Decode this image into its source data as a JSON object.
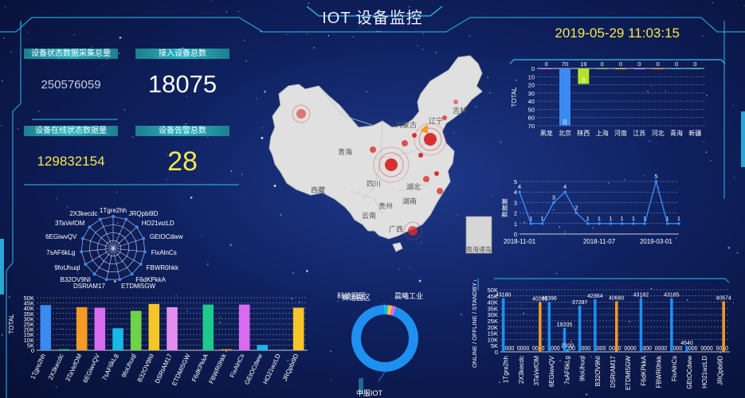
{
  "header": {
    "title": "IOT 设备监控",
    "datetime": "2019-05-29 11:03:15"
  },
  "stats": [
    {
      "label": "设备状态数据采集总量",
      "value": "250576059",
      "color": "#c7cbe0"
    },
    {
      "label": "接入设备总数",
      "value": "18075",
      "color": "#ffffff"
    },
    {
      "label": "设备在线状态数据量",
      "value": "129832154",
      "color": "#f7e84a"
    },
    {
      "label": "设备告警总数",
      "value": "28",
      "color": "#f7e84a"
    }
  ],
  "map": {
    "provinces": [
      "吉林",
      "内蒙古",
      "辽宁",
      "西藏",
      "四川",
      "湖北",
      "湖南",
      "贵州",
      "云南",
      "广西",
      "青海",
      "南海诸岛"
    ],
    "colors": {
      "land": "#dcdcdc",
      "hotspot": "#d83030"
    }
  },
  "chart_data": [
    {
      "type": "radar",
      "indicators": [
        "1Tgre2hh",
        "JRQpbi9D",
        "HO21wzLD",
        "GEtOCdww",
        "FixAlnCs",
        "FBWR0hkk",
        "F6dKPkkA",
        "ETDMI5GW",
        "DSRtAM17",
        "B32OV9NI",
        "9foUhuql",
        "7sAF6kLg",
        "6EGiwvQV",
        "3TaVefOM",
        "2X3kecdc"
      ]
    },
    {
      "type": "bar",
      "categories": [
        "1Tgre2hh",
        "2X3kecdc",
        "3TaVefOM",
        "6EGiwvQV",
        "7sAF6kLg",
        "9foUhuql",
        "B32OV9NI",
        "DSRtAM17",
        "ETDMI5GW",
        "F6dKPkkA",
        "FBWR0hkk",
        "FixAlnCs",
        "GEtOCdww",
        "HO21wzLD",
        "JRQpbi9D"
      ],
      "values": [
        43000,
        1000,
        41000,
        40500,
        21000,
        37500,
        44000,
        41000,
        0,
        43500,
        1000,
        43500,
        5000,
        0,
        40500
      ],
      "colors": [
        "#3b8af2",
        "#1ec98b",
        "#f59a23",
        "#d96bf0",
        "#16b9e8",
        "#6fd34a",
        "#f5c52a",
        "#e48ef0",
        "#3b8af2",
        "#1ec98b",
        "#f59a23",
        "#d96bf0",
        "#16b9e8",
        "#6fd34a",
        "#f5c52a"
      ],
      "ylabel": "TOTAL",
      "yticks": [
        "0",
        "5K",
        "10K",
        "15K",
        "20K",
        "25K",
        "30K",
        "35K",
        "40K",
        "45K",
        "50K"
      ],
      "ylim": [
        0,
        50000
      ]
    },
    {
      "type": "bar",
      "categories": [
        "黑龙",
        "北京",
        "陕西",
        "上海",
        "河南",
        "江苏",
        "河北",
        "青海",
        "新疆"
      ],
      "values": [
        0,
        70,
        19,
        0,
        0,
        0,
        0,
        0,
        0
      ],
      "value_labels": [
        "0",
        "70",
        "19",
        "0",
        "0",
        "0",
        "0",
        "0",
        "0"
      ],
      "inner_labels": [
        "",
        "0",
        "0",
        "",
        "",
        "",
        "",
        "",
        ""
      ],
      "colors": [
        "#d96bf0",
        "#3b8af2",
        "#b5e326",
        "#6fd34a",
        "#f5c52a",
        "#e48ef0",
        "#f59a23",
        "#16b9e8",
        "#1ec98b"
      ],
      "ylabel": "TOTAL",
      "yticks": [
        "0",
        "10",
        "20",
        "30",
        "40",
        "50",
        "60",
        "70"
      ],
      "ylim": [
        0,
        70
      ],
      "inverted": true
    },
    {
      "type": "line",
      "ylabel": "数据量",
      "yticks": [
        "0",
        "1",
        "2",
        "3",
        "4",
        "5"
      ],
      "xticks": [
        "2018-11-01",
        "2018-11-07",
        "2019-03-01"
      ],
      "values": [
        4,
        1,
        1,
        3,
        4,
        2,
        1,
        1,
        1,
        1,
        1,
        1,
        5,
        1,
        1
      ],
      "ylim": [
        0,
        5
      ]
    },
    {
      "type": "donut",
      "labels": [
        "中服IOT",
        "科技园区",
        "鲜活园区",
        "晨曦工业"
      ],
      "values": [
        94,
        2,
        2,
        2
      ],
      "colors": [
        "#1f8ff0",
        "#16b9e8",
        "#f5c52a",
        "#d96bf0"
      ]
    },
    {
      "type": "bar",
      "ylabel": "ONLINE / OFFLINE / STANDBY / E",
      "ylim": [
        0,
        50000
      ],
      "yticks": [
        "0",
        "5K",
        "10K",
        "15K",
        "20K",
        "25K",
        "30K",
        "35K",
        "40K",
        "45K",
        "50K"
      ],
      "categories": [
        "1Tgre2hh",
        "2X3kecdc",
        "3TaVefOM",
        "6EGiwvQV",
        "7sAF6kLg",
        "9foUhuql",
        "B32OV9NI",
        "DSRtAM17",
        "ETDMI5GW",
        "F6dKPkkA",
        "FBWR0hkk",
        "FixAlnCs",
        "GEtOCdww",
        "HO21wzLD",
        "JRQpbi9D"
      ],
      "series": [
        {
          "values": [
            43180,
            0,
            0,
            40396,
            19205,
            37287,
            42364,
            0,
            0,
            43182,
            0,
            43185,
            4640,
            0,
            0
          ],
          "labels": [
            "43180",
            "0",
            "0",
            "40396",
            "19205",
            "37287",
            "42364",
            "0",
            "0",
            "43182",
            "0",
            "43185",
            "4640",
            "0",
            "0"
          ],
          "color": "#1f8ff0"
        },
        {
          "values": [
            0,
            0,
            0,
            0,
            2320,
            0,
            0,
            0,
            0,
            0,
            0,
            0,
            0,
            0,
            0
          ],
          "labels": [
            "0",
            "0",
            "0",
            "0",
            "2320",
            "0",
            "0",
            "0",
            "0",
            "0",
            "0",
            "0",
            "0",
            "0",
            "0"
          ],
          "color": "#16b9e8"
        },
        {
          "values": [
            0,
            0,
            40201,
            0,
            0,
            0,
            0,
            40680,
            0,
            0,
            0,
            0,
            0,
            0,
            40674
          ],
          "labels": [
            "0",
            "0",
            "40201",
            "0",
            "0",
            "0",
            "0",
            "40680",
            "0",
            "0",
            "0",
            "0",
            "0",
            "0",
            "40674"
          ],
          "color": "#f59a23"
        },
        {
          "values": [
            0,
            0,
            0,
            0,
            0,
            0,
            0,
            0,
            0,
            0,
            0,
            0,
            0,
            0,
            0
          ],
          "labels": [
            "0",
            "0",
            "0",
            "0",
            "0",
            "0",
            "0",
            "0",
            "0",
            "0",
            "0",
            "0",
            "0",
            "0",
            "0"
          ],
          "color": "#d96bf0"
        }
      ]
    }
  ]
}
